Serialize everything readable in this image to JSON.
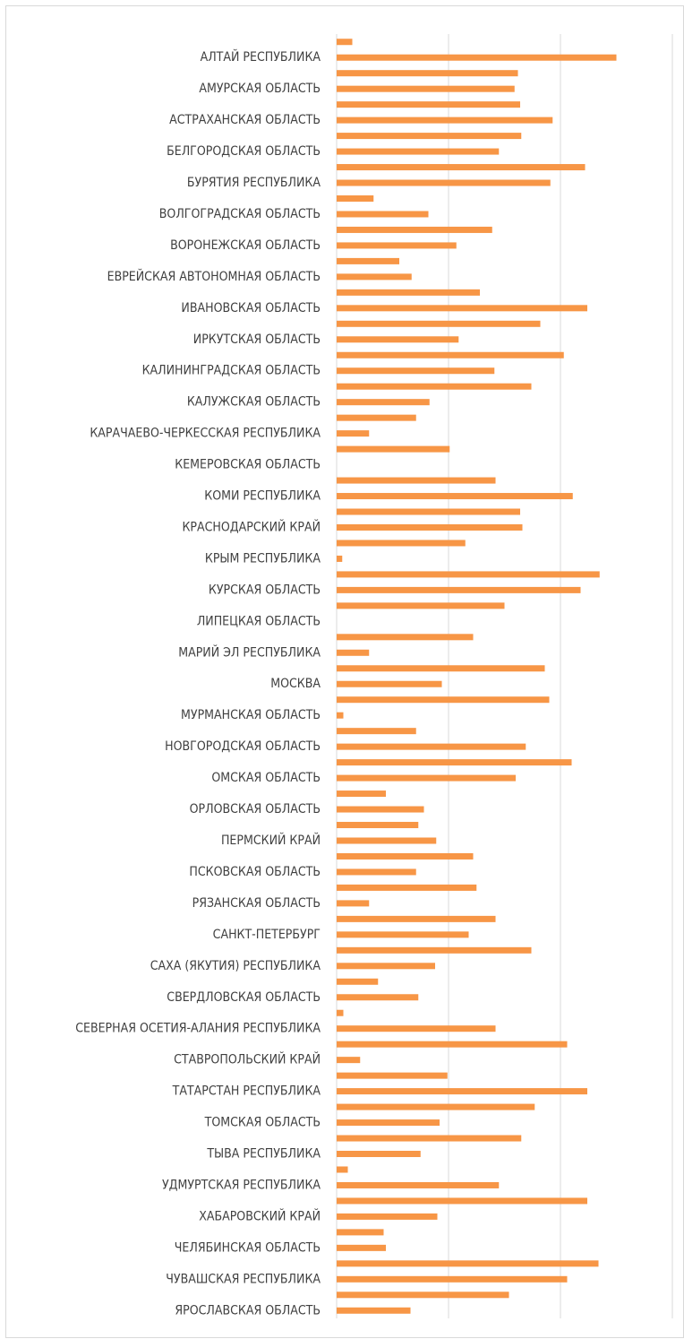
{
  "chart_data": {
    "type": "bar",
    "orientation": "horizontal",
    "color": "#f79646",
    "grid": true,
    "xlim": [
      0,
      3
    ],
    "xticks": [
      0,
      1,
      2,
      3
    ],
    "categories": [
      null,
      "АЛТАЙ РЕСПУБЛИКА",
      null,
      "АМУРСКАЯ ОБЛАСТЬ",
      null,
      "АСТРАХАНСКАЯ ОБЛАСТЬ",
      null,
      "БЕЛГОРОДСКАЯ ОБЛАСТЬ",
      null,
      "БУРЯТИЯ РЕСПУБЛИКА",
      null,
      "ВОЛГОГРАДСКАЯ ОБЛАСТЬ",
      null,
      "ВОРОНЕЖСКАЯ ОБЛАСТЬ",
      null,
      "ЕВРЕЙСКАЯ АВТОНОМНАЯ ОБЛАСТЬ",
      null,
      "ИВАНОВСКАЯ ОБЛАСТЬ",
      null,
      "ИРКУТСКАЯ ОБЛАСТЬ",
      null,
      "КАЛИНИНГРАДСКАЯ ОБЛАСТЬ",
      null,
      "КАЛУЖСКАЯ ОБЛАСТЬ",
      null,
      "КАРАЧАЕВО-ЧЕРКЕССКАЯ РЕСПУБЛИКА",
      null,
      "КЕМЕРОВСКАЯ ОБЛАСТЬ",
      null,
      "КОМИ РЕСПУБЛИКА",
      null,
      "КРАСНОДАРСКИЙ КРАЙ",
      null,
      "КРЫМ РЕСПУБЛИКА",
      null,
      "КУРСКАЯ ОБЛАСТЬ",
      null,
      "ЛИПЕЦКАЯ ОБЛАСТЬ",
      null,
      "МАРИЙ ЭЛ РЕСПУБЛИКА",
      null,
      "МОСКВА",
      null,
      "МУРМАНСКАЯ ОБЛАСТЬ",
      null,
      "НОВГОРОДСКАЯ ОБЛАСТЬ",
      null,
      "ОМСКАЯ ОБЛАСТЬ",
      null,
      "ОРЛОВСКАЯ ОБЛАСТЬ",
      null,
      "ПЕРМСКИЙ КРАЙ",
      null,
      "ПСКОВСКАЯ ОБЛАСТЬ",
      null,
      "РЯЗАНСКАЯ ОБЛАСТЬ",
      null,
      "САНКТ-ПЕТЕРБУРГ",
      null,
      "САХА (ЯКУТИЯ) РЕСПУБЛИКА",
      null,
      "СВЕРДЛОВСКАЯ ОБЛАСТЬ",
      null,
      "СЕВЕРНАЯ ОСЕТИЯ-АЛАНИЯ РЕСПУБЛИКА",
      null,
      "СТАВРОПОЛЬСКИЙ КРАЙ",
      null,
      "ТАТАРСТАН РЕСПУБЛИКА",
      null,
      "ТОМСКАЯ ОБЛАСТЬ",
      null,
      "ТЫВА РЕСПУБЛИКА",
      null,
      "УДМУРТСКАЯ РЕСПУБЛИКА",
      null,
      "ХАБАРОВСКИЙ КРАЙ",
      null,
      "ЧЕЛЯБИНСКАЯ ОБЛАСТЬ",
      null,
      "ЧУВАШСКАЯ РЕСПУБЛИКА",
      null,
      "ЯРОСЛАВСКАЯ ОБЛАСТЬ"
    ],
    "values": [
      0.14,
      2.5,
      1.62,
      1.59,
      1.64,
      1.93,
      1.65,
      1.45,
      2.22,
      1.91,
      0.33,
      0.82,
      1.39,
      1.07,
      0.56,
      0.67,
      1.28,
      2.24,
      1.82,
      1.09,
      2.03,
      1.41,
      1.74,
      0.83,
      0.71,
      0.29,
      1.01,
      0,
      1.42,
      2.11,
      1.64,
      1.66,
      1.15,
      0.05,
      2.35,
      2.18,
      1.5,
      0,
      1.22,
      0.29,
      1.86,
      0.94,
      1.9,
      0.06,
      0.71,
      1.69,
      2.1,
      1.6,
      0.44,
      0.78,
      0.73,
      0.89,
      1.22,
      0.71,
      1.25,
      0.29,
      1.42,
      1.18,
      1.74,
      0.88,
      0.37,
      0.73,
      0.06,
      1.42,
      2.06,
      0.21,
      0.99,
      2.24,
      1.77,
      0.92,
      1.65,
      0.75,
      0.1,
      1.45,
      2.24,
      0.9,
      0.42,
      0.44,
      2.34,
      2.06,
      1.54,
      0.66
    ]
  }
}
